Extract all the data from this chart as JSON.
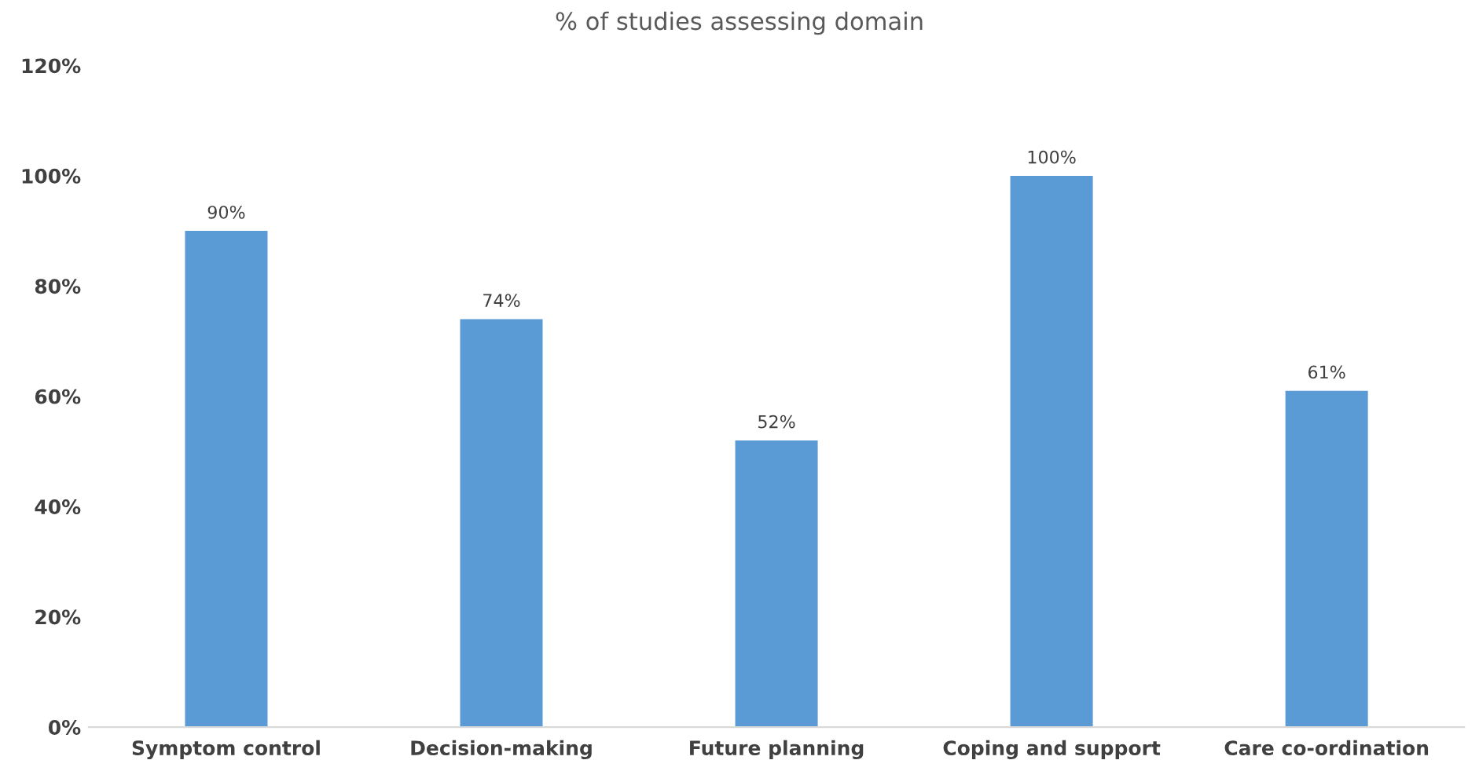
{
  "chart_data": {
    "type": "bar",
    "title": "% of studies assessing domain",
    "categories": [
      "Symptom control",
      "Decision-making",
      "Future planning",
      "Coping and support",
      "Care co-ordination"
    ],
    "values": [
      90,
      74,
      52,
      100,
      61
    ],
    "value_labels": [
      "90%",
      "74%",
      "52%",
      "100%",
      "61%"
    ],
    "color": "#5b9bd5",
    "ylim": [
      0,
      120
    ],
    "yticks": [
      {
        "value": 0,
        "label": "0%"
      },
      {
        "value": 20,
        "label": "20%"
      },
      {
        "value": 40,
        "label": "40%"
      },
      {
        "value": 60,
        "label": "60%"
      },
      {
        "value": 80,
        "label": "80%"
      },
      {
        "value": 100,
        "label": "100%"
      },
      {
        "value": 120,
        "label": "120%"
      }
    ],
    "grid": false,
    "legend": false
  }
}
